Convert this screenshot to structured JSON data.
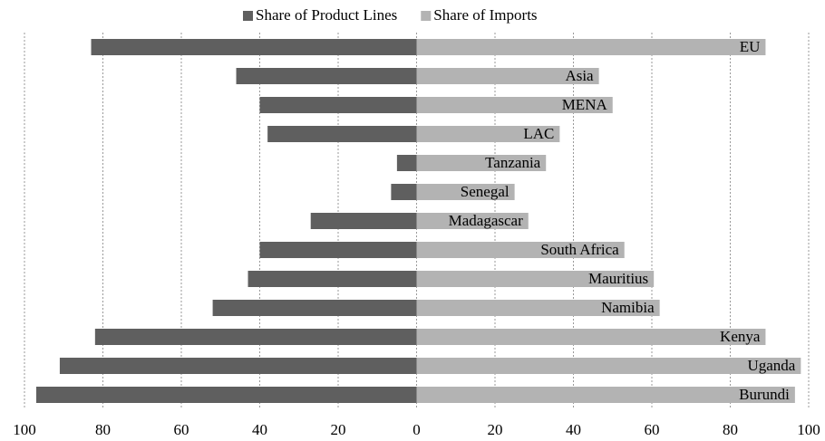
{
  "chart_data": {
    "type": "butterfly_bar",
    "categories": [
      "EU",
      "Asia",
      "MENA",
      "LAC",
      "Tanzania",
      "Senegal",
      "Madagascar",
      "South Africa",
      "Mauritius",
      "Namibia",
      "Kenya",
      "Uganda",
      "Burundi"
    ],
    "series": [
      {
        "name": "Share of Product Lines",
        "color": "#5f5f5f",
        "values": [
          -83,
          -46,
          -40,
          -38,
          -5,
          -6.5,
          -27,
          -40,
          -43,
          -52,
          -82,
          -91,
          -97
        ]
      },
      {
        "name": "Share of Imports",
        "color": "#b3b3b3",
        "values": [
          89,
          46.5,
          50,
          36.5,
          33,
          25,
          28.5,
          53,
          60.5,
          62,
          89,
          98,
          96.5
        ]
      }
    ],
    "xlim": [
      -100,
      100
    ],
    "xticks": [
      {
        "value": -100,
        "label": "100"
      },
      {
        "value": -80,
        "label": "80"
      },
      {
        "value": -60,
        "label": "60"
      },
      {
        "value": -40,
        "label": "40"
      },
      {
        "value": -20,
        "label": "20"
      },
      0,
      20,
      40,
      60,
      80,
      100
    ],
    "negative_tick_label_color": "#e8141c",
    "grid": true,
    "legend_position": "top"
  }
}
